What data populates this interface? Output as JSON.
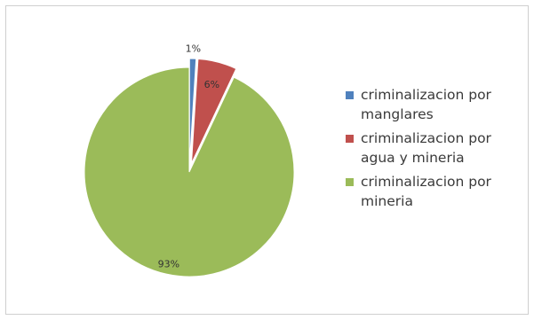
{
  "chart_data": {
    "type": "pie",
    "title": "",
    "categories": [
      "criminalizacion por manglares",
      "criminalizacion por agua y mineria",
      "criminalizacion por mineria"
    ],
    "values": [
      1,
      6,
      93
    ],
    "data_labels": [
      "1%",
      "6%",
      "93%"
    ],
    "colors": [
      "#4f81bd",
      "#c0504d",
      "#9bbb59"
    ],
    "exploded": true,
    "legend_position": "right"
  },
  "legend": {
    "items": [
      {
        "label": "criminalizacion por manglares",
        "color": "#4f81bd"
      },
      {
        "label": "criminalizacion por agua y mineria",
        "color": "#c0504d"
      },
      {
        "label": "criminalizacion por mineria",
        "color": "#9bbb59"
      }
    ]
  }
}
